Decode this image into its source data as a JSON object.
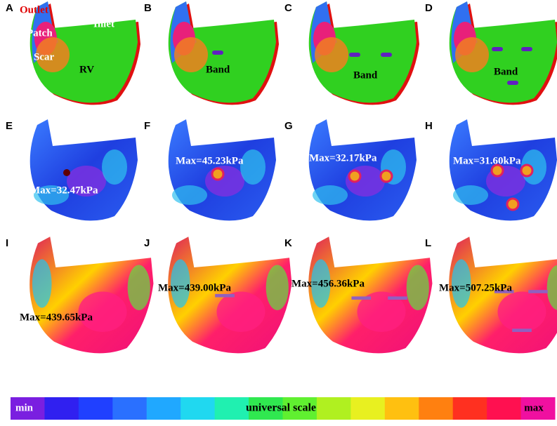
{
  "panels": [
    {
      "label": "A",
      "annotations": [
        "Outlet",
        "Patch",
        "Scar",
        "Inlet",
        "RV"
      ]
    },
    {
      "label": "B",
      "annotations": [
        "Band"
      ]
    },
    {
      "label": "C",
      "annotations": [
        "Band"
      ]
    },
    {
      "label": "D",
      "annotations": [
        "Band"
      ]
    },
    {
      "label": "E",
      "annotations": [
        "Max=32.47kPa"
      ]
    },
    {
      "label": "F",
      "annotations": [
        "Max=45.23kPa"
      ]
    },
    {
      "label": "G",
      "annotations": [
        "Max=32.17kPa"
      ]
    },
    {
      "label": "H",
      "annotations": [
        "Max=31.60kPa"
      ]
    },
    {
      "label": "I",
      "annotations": [
        "Max=439.65kPa"
      ]
    },
    {
      "label": "J",
      "annotations": [
        "Max=439.00kPa"
      ]
    },
    {
      "label": "K",
      "annotations": [
        "Max=456.36kPa"
      ]
    },
    {
      "label": "L",
      "annotations": [
        "Max=507.25kPa"
      ]
    }
  ],
  "color_scale": {
    "min": "min",
    "label": "universal scale",
    "max": "max"
  }
}
